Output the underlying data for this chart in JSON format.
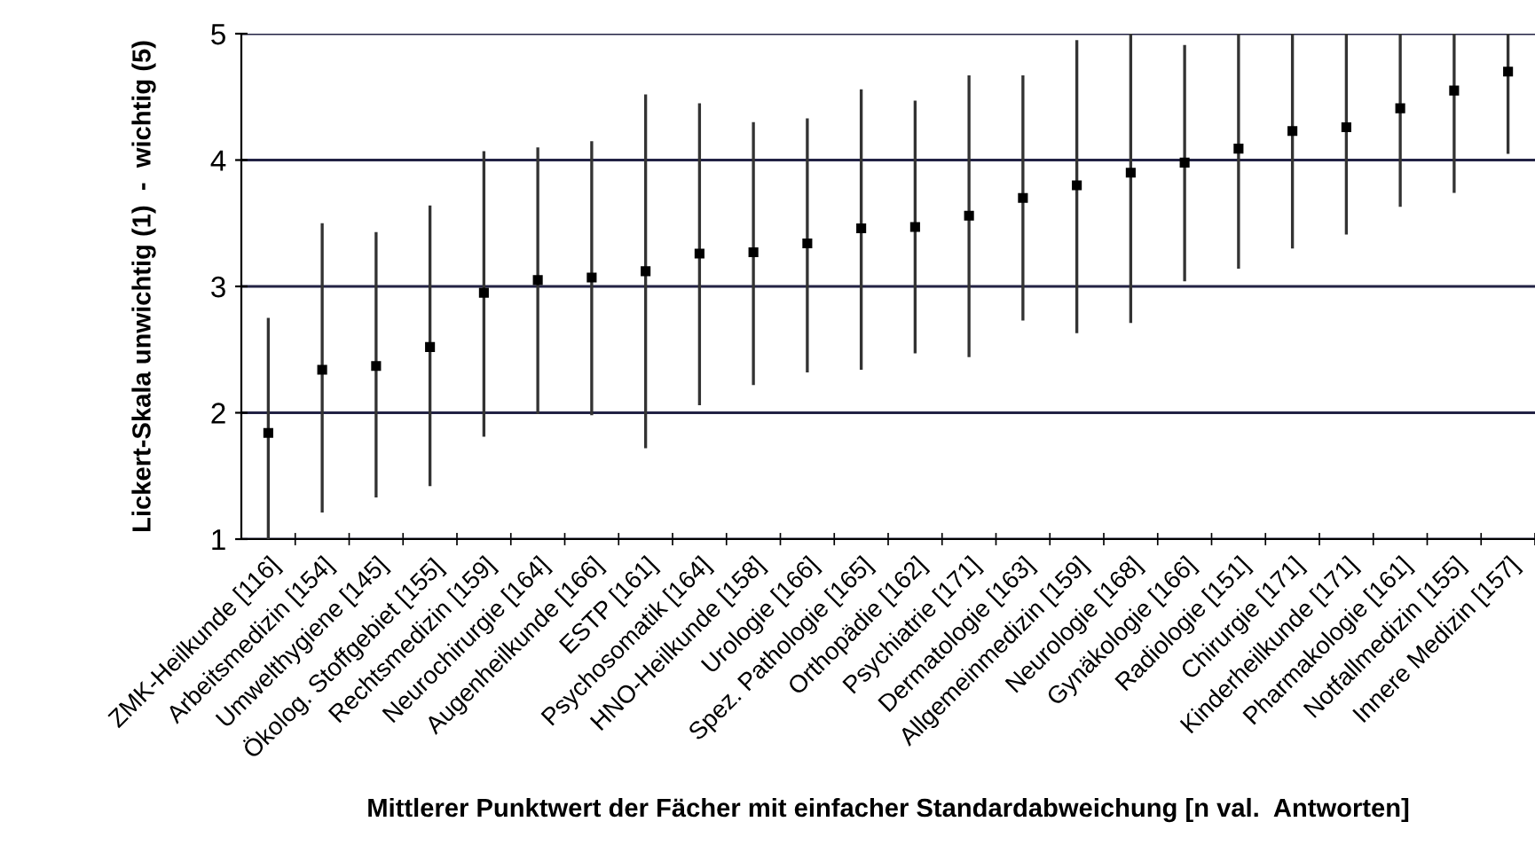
{
  "chart_data": {
    "type": "scatter",
    "xlabel": "Mittlerer Punktwert der Fächer mit einfacher Standardabweichung [n val.  Antworten]",
    "ylabel": "Lickert-Skala unwichtig (1)  -  wichtig (5)",
    "categories": [
      "ZMK-Heilkunde [116]",
      "Arbeitsmedizin [154]",
      "Umwelthygiene [145]",
      "Ökolog. Stoffgebiet [155]",
      "Rechtsmedizin [159]",
      "Neurochirurgie [164]",
      "Augenheilkunde [166]",
      "ESTP [161]",
      "Psychosomatik [164]",
      "HNO-Heilkunde [158]",
      "Urologie [166]",
      "Spez. Pathologie [165]",
      "Orthopädie [162]",
      "Psychiatrie [171]",
      "Dermatologie [163]",
      "Allgemeinmedizin [159]",
      "Neurologie [168]",
      "Gynäkologie [166]",
      "Radiologie [151]",
      "Chirurgie [171]",
      "Kinderheilkunde [171]",
      "Pharmakologie [161]",
      "Notfallmedizin [155]",
      "Innere Medizin [157]"
    ],
    "values": [
      1.84,
      2.34,
      2.37,
      2.52,
      2.95,
      3.05,
      3.07,
      3.12,
      3.26,
      3.27,
      3.34,
      3.46,
      3.47,
      3.56,
      3.7,
      3.8,
      3.9,
      3.98,
      4.09,
      4.23,
      4.26,
      4.41,
      4.55,
      4.7
    ],
    "errors": [
      [
        1.0,
        2.75
      ],
      [
        1.21,
        3.5
      ],
      [
        1.33,
        3.43
      ],
      [
        1.42,
        3.64
      ],
      [
        1.81,
        4.07
      ],
      [
        1.99,
        4.1
      ],
      [
        1.98,
        4.15
      ],
      [
        1.72,
        4.52
      ],
      [
        2.06,
        4.45
      ],
      [
        2.22,
        4.3
      ],
      [
        2.32,
        4.33
      ],
      [
        2.34,
        4.56
      ],
      [
        2.47,
        4.47
      ],
      [
        2.44,
        4.67
      ],
      [
        2.73,
        4.67
      ],
      [
        2.63,
        4.95
      ],
      [
        2.71,
        5.0
      ],
      [
        3.04,
        4.91
      ],
      [
        3.14,
        5.0
      ],
      [
        3.3,
        5.0
      ],
      [
        3.41,
        5.0
      ],
      [
        3.63,
        5.0
      ],
      [
        3.74,
        5.0
      ],
      [
        4.05,
        5.0
      ]
    ],
    "color": "#000000",
    "marker": "square",
    "ylim": [
      1,
      5
    ],
    "yticks": [
      1,
      2,
      3,
      4,
      5
    ],
    "grid": "y",
    "legend": false
  }
}
